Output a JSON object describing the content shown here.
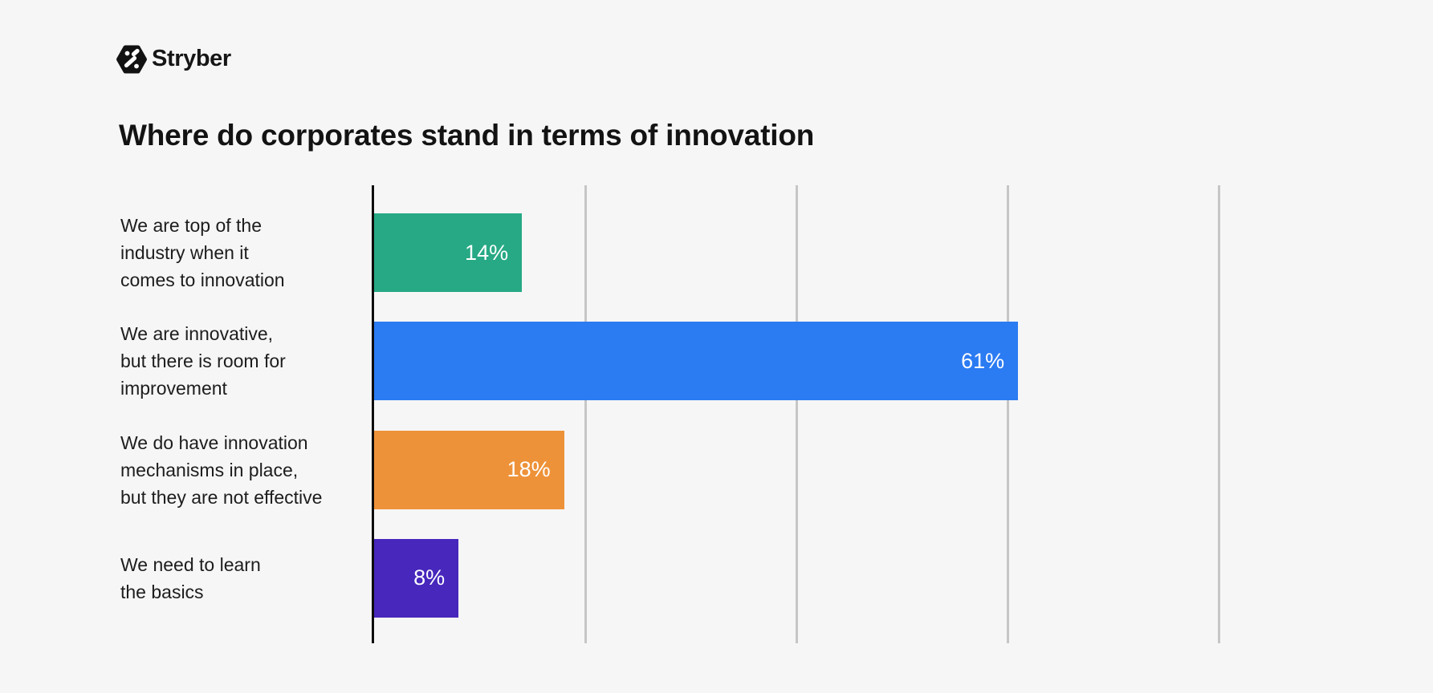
{
  "logo": {
    "text": "Stryber"
  },
  "chart_data": {
    "type": "bar",
    "orientation": "horizontal",
    "title": "Where do corporates stand in terms of innovation",
    "categories": [
      "We are top of the\nindustry when it\ncomes to innovation",
      "We are innovative,\nbut there is room for\nimprovement",
      "We do have innovation\nmechanisms in place,\nbut they are not effective",
      "We need to learn\nthe basics"
    ],
    "values": [
      14,
      61,
      18,
      8
    ],
    "value_labels": [
      "14%",
      "61%",
      "18%",
      "8%"
    ],
    "bar_colors": [
      "#26A984",
      "#2B7BF2",
      "#EE9239",
      "#4727BC"
    ],
    "xlabel": "",
    "ylabel": "",
    "xlim": [
      0,
      80
    ],
    "gridlines_percent": [
      20,
      40,
      60,
      80
    ],
    "grid": "vertical-only",
    "legend": "none",
    "tick_labels_shown": false,
    "value_label_color": "#ffffff",
    "axis_color": "#0d0d0d",
    "gridline_color": "#c6c6c6",
    "background": "#f6f6f6"
  }
}
